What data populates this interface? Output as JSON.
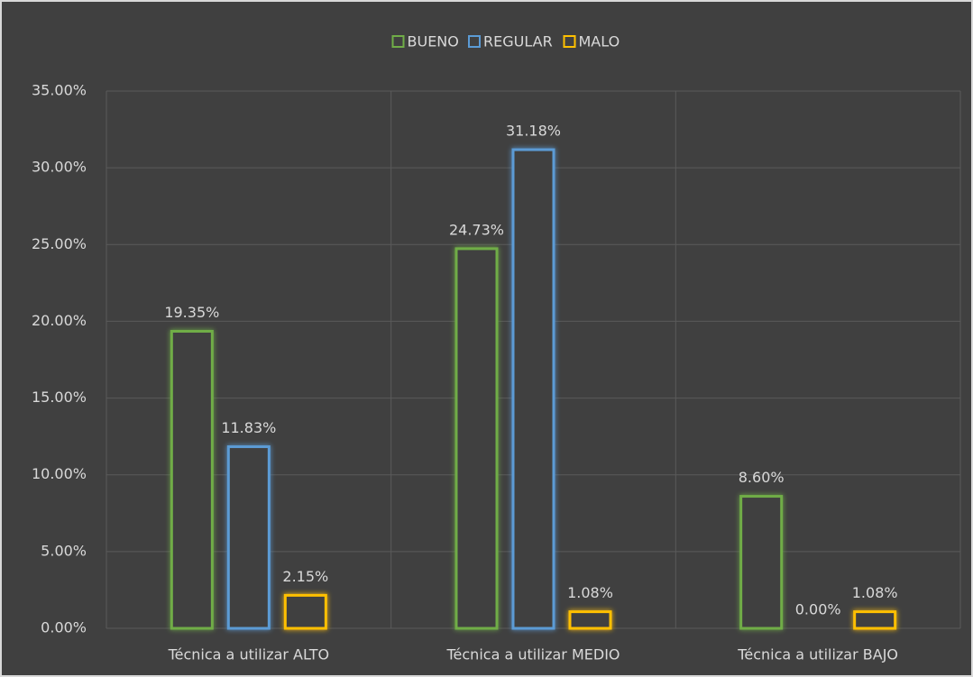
{
  "chart_data": {
    "type": "bar",
    "categories": [
      "Técnica a utilizar ALTO",
      "Técnica a utilizar MEDIO",
      "Técnica a utilizar BAJO"
    ],
    "series": [
      {
        "name": "BUENO",
        "color": "#70ad47",
        "values": [
          19.35,
          24.73,
          8.6
        ],
        "value_labels": [
          "19.35%",
          "24.73%",
          "8.60%"
        ]
      },
      {
        "name": "REGULAR",
        "color": "#5b9bd5",
        "values": [
          11.83,
          31.18,
          0
        ],
        "value_labels": [
          "11.83%",
          "31.18%",
          "0.00%"
        ]
      },
      {
        "name": "MALO",
        "color": "#ffc000",
        "values": [
          2.15,
          1.08,
          1.08
        ],
        "value_labels": [
          "2.15%",
          "1.08%",
          "1.08%"
        ]
      }
    ],
    "ylim": [
      0,
      35
    ],
    "yticks": [
      {
        "value": 0,
        "label": "0.00%"
      },
      {
        "value": 5,
        "label": "5.00%"
      },
      {
        "value": 10,
        "label": "10.00%"
      },
      {
        "value": 15,
        "label": "15.00%"
      },
      {
        "value": 20,
        "label": "20.00%"
      },
      {
        "value": 25,
        "label": "25.00%"
      },
      {
        "value": 30,
        "label": "30.00%"
      },
      {
        "value": 35,
        "label": "35.00%"
      }
    ],
    "grid": true,
    "legend": "top"
  }
}
